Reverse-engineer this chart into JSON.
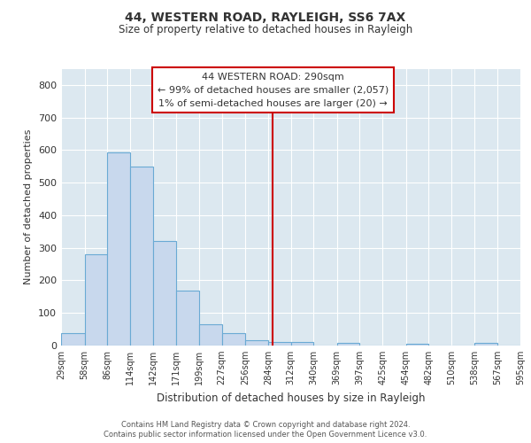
{
  "title1": "44, WESTERN ROAD, RAYLEIGH, SS6 7AX",
  "title2": "Size of property relative to detached houses in Rayleigh",
  "xlabel": "Distribution of detached houses by size in Rayleigh",
  "ylabel": "Number of detached properties",
  "annotation_title": "44 WESTERN ROAD: 290sqm",
  "annotation_line1": "← 99% of detached houses are smaller (2,057)",
  "annotation_line2": "1% of semi-detached houses are larger (20) →",
  "vline_x": 290,
  "bin_edges": [
    29,
    58,
    86,
    114,
    142,
    171,
    199,
    227,
    256,
    284,
    312,
    340,
    369,
    397,
    425,
    454,
    482,
    510,
    538,
    567,
    595
  ],
  "bin_counts": [
    37,
    280,
    593,
    550,
    320,
    170,
    65,
    38,
    17,
    10,
    10,
    0,
    8,
    0,
    0,
    5,
    0,
    0,
    8,
    0
  ],
  "bar_color": "#c8d8ed",
  "bar_edge_color": "#6aaad4",
  "vline_color": "#cc0000",
  "annotation_box_edge_color": "#cc0000",
  "fig_bg_color": "#ffffff",
  "plot_bg_color": "#dce8f0",
  "grid_color": "#ffffff",
  "text_color": "#333333",
  "ylim": [
    0,
    850
  ],
  "yticks": [
    0,
    100,
    200,
    300,
    400,
    500,
    600,
    700,
    800
  ],
  "footnote1": "Contains HM Land Registry data © Crown copyright and database right 2024.",
  "footnote2": "Contains public sector information licensed under the Open Government Licence v3.0."
}
